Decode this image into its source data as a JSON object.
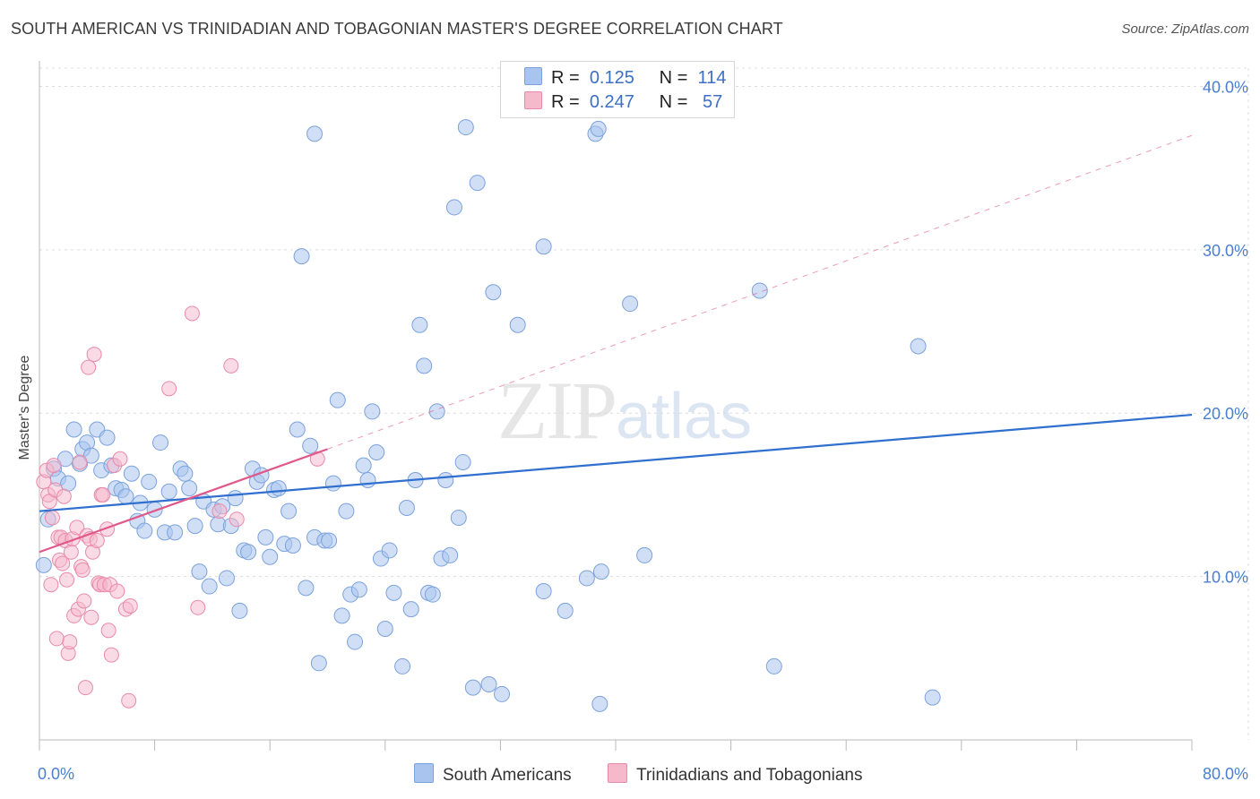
{
  "header": {
    "title": "SOUTH AMERICAN VS TRINIDADIAN AND TOBAGONIAN MASTER'S DEGREE CORRELATION CHART",
    "source": "Source: ZipAtlas.com"
  },
  "watermark": {
    "zip": "ZIP",
    "atlas": "atlas"
  },
  "legend": {
    "rows": [
      {
        "r_label": "R =",
        "r_value": "0.125",
        "n_label": "N =",
        "n_value": "114",
        "color": "#a9c5ef"
      },
      {
        "r_label": "R =",
        "r_value": "0.247",
        "n_label": "N =",
        "n_value": "57",
        "color": "#f6b8cb"
      }
    ]
  },
  "bottom_legend": {
    "south_american": "South Americans",
    "trinidadian": "Trinidadians and Tobagonians"
  },
  "colors": {
    "blue_fill": "#a9c5ef",
    "blue_stroke": "#7ba2dc",
    "blue_line": "#2f6fcf",
    "pink_fill": "#f6b8cb",
    "pink_stroke": "#e98aa8",
    "pink_line": "#e0588a",
    "tick": "#4a7fd0",
    "grid": "#dcdcdc"
  },
  "chart_data": {
    "type": "scatter",
    "title": "SOUTH AMERICAN VS TRINIDADIAN AND TOBAGONIAN MASTER'S DEGREE CORRELATION CHART",
    "xlabel": "",
    "ylabel": "Master's Degree",
    "xlim": [
      0,
      80
    ],
    "ylim": [
      0,
      42
    ],
    "x_tick_labels": [
      "0.0%",
      "80.0%"
    ],
    "y_ticks": [
      10,
      20,
      30,
      40
    ],
    "y_tick_labels": [
      "10.0%",
      "20.0%",
      "30.0%",
      "40.0%"
    ],
    "grid": true,
    "legend_position": "top-center",
    "series": [
      {
        "name": "South Americans",
        "color": "#a9c5ef",
        "trend": {
          "x": [
            0,
            80
          ],
          "y": [
            14.0,
            19.9
          ],
          "style": "solid"
        },
        "points": [
          [
            0.3,
            10.7
          ],
          [
            0.6,
            13.5
          ],
          [
            1.0,
            16.6
          ],
          [
            1.3,
            16.0
          ],
          [
            1.8,
            17.2
          ],
          [
            2.0,
            15.7
          ],
          [
            2.4,
            19.0
          ],
          [
            2.8,
            16.9
          ],
          [
            3.0,
            17.8
          ],
          [
            3.3,
            18.2
          ],
          [
            3.6,
            17.4
          ],
          [
            4.0,
            19.0
          ],
          [
            4.3,
            16.5
          ],
          [
            4.7,
            18.5
          ],
          [
            5.0,
            16.8
          ],
          [
            5.3,
            15.4
          ],
          [
            5.7,
            15.3
          ],
          [
            6.0,
            14.9
          ],
          [
            6.4,
            16.3
          ],
          [
            6.8,
            13.4
          ],
          [
            7.0,
            14.5
          ],
          [
            7.3,
            12.8
          ],
          [
            7.6,
            15.8
          ],
          [
            8.0,
            14.1
          ],
          [
            8.4,
            18.2
          ],
          [
            8.7,
            12.7
          ],
          [
            9.0,
            15.2
          ],
          [
            9.4,
            12.7
          ],
          [
            9.8,
            16.6
          ],
          [
            10.1,
            16.3
          ],
          [
            10.4,
            15.4
          ],
          [
            10.8,
            13.1
          ],
          [
            11.1,
            10.3
          ],
          [
            11.4,
            14.6
          ],
          [
            11.8,
            9.4
          ],
          [
            12.1,
            14.1
          ],
          [
            12.4,
            13.2
          ],
          [
            12.7,
            14.3
          ],
          [
            13.0,
            9.9
          ],
          [
            13.3,
            13.1
          ],
          [
            13.6,
            14.8
          ],
          [
            13.9,
            7.9
          ],
          [
            14.2,
            11.6
          ],
          [
            14.5,
            11.5
          ],
          [
            14.8,
            16.6
          ],
          [
            15.1,
            15.8
          ],
          [
            15.4,
            16.2
          ],
          [
            15.7,
            12.4
          ],
          [
            16.0,
            11.2
          ],
          [
            16.3,
            15.3
          ],
          [
            16.6,
            15.4
          ],
          [
            17.0,
            12.0
          ],
          [
            17.3,
            14.0
          ],
          [
            17.6,
            11.9
          ],
          [
            17.9,
            19.0
          ],
          [
            18.2,
            29.6
          ],
          [
            18.5,
            9.3
          ],
          [
            18.8,
            18.0
          ],
          [
            19.1,
            12.4
          ],
          [
            19.4,
            4.7
          ],
          [
            19.1,
            37.1
          ],
          [
            19.8,
            12.2
          ],
          [
            20.1,
            12.2
          ],
          [
            20.4,
            15.7
          ],
          [
            20.7,
            20.8
          ],
          [
            21.0,
            7.6
          ],
          [
            21.3,
            14.0
          ],
          [
            21.6,
            8.9
          ],
          [
            21.9,
            6.0
          ],
          [
            22.2,
            9.2
          ],
          [
            22.5,
            16.8
          ],
          [
            22.8,
            15.9
          ],
          [
            23.1,
            20.1
          ],
          [
            23.4,
            17.6
          ],
          [
            23.7,
            11.1
          ],
          [
            24.0,
            6.8
          ],
          [
            24.3,
            11.6
          ],
          [
            24.6,
            9.0
          ],
          [
            25.2,
            4.5
          ],
          [
            25.5,
            14.2
          ],
          [
            25.8,
            8.0
          ],
          [
            26.1,
            15.9
          ],
          [
            26.4,
            25.4
          ],
          [
            26.7,
            22.9
          ],
          [
            27.0,
            9.0
          ],
          [
            27.3,
            8.9
          ],
          [
            27.6,
            20.1
          ],
          [
            27.9,
            11.1
          ],
          [
            28.2,
            15.9
          ],
          [
            28.5,
            11.3
          ],
          [
            28.8,
            32.6
          ],
          [
            29.1,
            13.6
          ],
          [
            29.4,
            17.0
          ],
          [
            29.6,
            37.5
          ],
          [
            30.1,
            3.2
          ],
          [
            30.4,
            34.1
          ],
          [
            31.2,
            3.4
          ],
          [
            31.5,
            27.4
          ],
          [
            32.1,
            2.8
          ],
          [
            33.2,
            25.4
          ],
          [
            35.0,
            30.2
          ],
          [
            35.0,
            9.1
          ],
          [
            36.5,
            7.9
          ],
          [
            38.0,
            9.9
          ],
          [
            39.0,
            10.3
          ],
          [
            38.6,
            37.1
          ],
          [
            38.8,
            37.4
          ],
          [
            38.9,
            2.2
          ],
          [
            41.0,
            26.7
          ],
          [
            42.0,
            11.3
          ],
          [
            50.0,
            27.5
          ],
          [
            51.0,
            4.5
          ],
          [
            61.0,
            24.1
          ],
          [
            62.0,
            2.6
          ]
        ]
      },
      {
        "name": "Trinidadians and Tobagonians",
        "color": "#f6b8cb",
        "trend": {
          "x": [
            0,
            20
          ],
          "y": [
            11.5,
            17.8
          ],
          "style": "solid",
          "extended": {
            "x": [
              20,
              80
            ],
            "y": [
              17.8,
              37.0
            ],
            "style": "dashed"
          }
        },
        "points": [
          [
            0.3,
            15.8
          ],
          [
            0.5,
            16.5
          ],
          [
            0.6,
            15.0
          ],
          [
            0.7,
            14.6
          ],
          [
            0.9,
            13.6
          ],
          [
            1.0,
            16.8
          ],
          [
            1.1,
            15.3
          ],
          [
            1.3,
            12.4
          ],
          [
            1.4,
            11.0
          ],
          [
            1.5,
            12.4
          ],
          [
            1.6,
            10.8
          ],
          [
            1.7,
            14.9
          ],
          [
            1.8,
            12.2
          ],
          [
            1.9,
            9.8
          ],
          [
            2.0,
            5.3
          ],
          [
            2.1,
            6.0
          ],
          [
            2.2,
            11.5
          ],
          [
            2.3,
            12.3
          ],
          [
            2.4,
            7.6
          ],
          [
            2.6,
            13.0
          ],
          [
            2.7,
            8.0
          ],
          [
            2.8,
            17.0
          ],
          [
            2.9,
            10.6
          ],
          [
            3.0,
            10.4
          ],
          [
            3.1,
            8.5
          ],
          [
            3.2,
            3.2
          ],
          [
            3.3,
            12.5
          ],
          [
            3.4,
            22.8
          ],
          [
            3.5,
            12.3
          ],
          [
            3.6,
            7.5
          ],
          [
            3.7,
            11.5
          ],
          [
            3.8,
            23.6
          ],
          [
            4.0,
            12.2
          ],
          [
            4.1,
            9.6
          ],
          [
            4.2,
            9.5
          ],
          [
            4.3,
            15.0
          ],
          [
            4.4,
            15.0
          ],
          [
            4.5,
            9.5
          ],
          [
            4.7,
            12.9
          ],
          [
            4.8,
            6.7
          ],
          [
            4.9,
            9.5
          ],
          [
            5.0,
            5.2
          ],
          [
            5.2,
            16.8
          ],
          [
            5.4,
            9.1
          ],
          [
            5.6,
            17.2
          ],
          [
            6.0,
            8.0
          ],
          [
            6.3,
            8.2
          ],
          [
            6.2,
            2.4
          ],
          [
            9.0,
            21.5
          ],
          [
            10.6,
            26.1
          ],
          [
            11.0,
            8.1
          ],
          [
            12.5,
            14.0
          ],
          [
            13.3,
            22.9
          ],
          [
            13.7,
            13.5
          ],
          [
            19.3,
            17.2
          ],
          [
            0.8,
            9.5
          ],
          [
            1.2,
            6.2
          ]
        ]
      }
    ]
  }
}
